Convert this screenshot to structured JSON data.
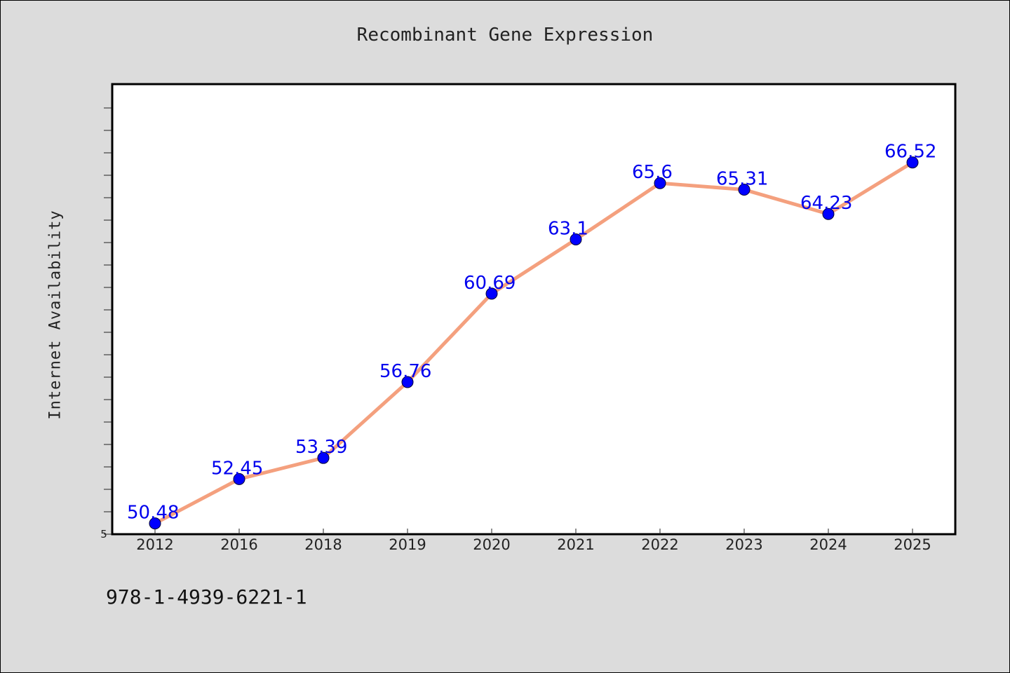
{
  "chart_data": {
    "type": "line",
    "title": "Recombinant Gene Expression",
    "xlabel": "",
    "ylabel": "Internet Availability",
    "categories": [
      "2012",
      "2016",
      "2018",
      "2019",
      "2020",
      "2021",
      "2022",
      "2023",
      "2024",
      "2025"
    ],
    "series": [
      {
        "values": [
          50.48,
          52.45,
          53.39,
          56.76,
          60.69,
          63.1,
          65.6,
          65.31,
          64.23,
          66.52
        ]
      }
    ],
    "data_labels": [
      "50.48",
      "52.45",
      "53.39",
      "56.76",
      "60.69",
      "63.1",
      "65.6",
      "65.31",
      "64.23",
      "66.52"
    ],
    "ylim": [
      50,
      70
    ],
    "y_tick_label": "5",
    "grid": false,
    "legend": "none",
    "colors": {
      "line": "#f4a07e",
      "marker": "#0000ff",
      "data_label": "#0000ee",
      "background": "#dcdcdc",
      "plot_background": "#ffffff"
    }
  },
  "footnote": "978-1-4939-6221-1"
}
